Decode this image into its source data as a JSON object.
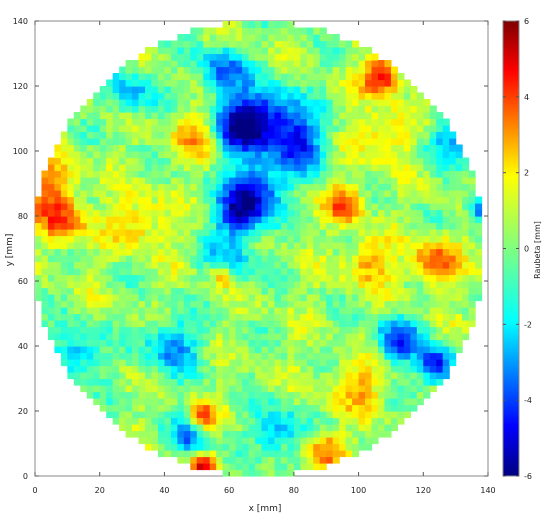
{
  "chart_data": {
    "type": "heatmap",
    "xlabel": "x [mm]",
    "ylabel": "y [mm]",
    "xlim": [
      0,
      140
    ],
    "ylim": [
      0,
      140
    ],
    "xticks": [
      "0",
      "20",
      "40",
      "60",
      "80",
      "100",
      "120",
      "140"
    ],
    "yticks": [
      "0",
      "20",
      "40",
      "60",
      "80",
      "100",
      "120",
      "140"
    ],
    "grid": false,
    "region": {
      "shape": "circle",
      "center_x": 69,
      "center_y": 70,
      "radius": 70
    },
    "colorbar": {
      "label": "Raubeta [mm]",
      "min": -6,
      "max": 6,
      "ticks": [
        "-6",
        "-4",
        "-2",
        "0",
        "2",
        "4",
        "6"
      ],
      "colormap": "jet"
    },
    "features": [
      {
        "x": 107,
        "y": 123,
        "value": 5.0,
        "spread": 4
      },
      {
        "x": 58,
        "y": 125,
        "value": -3.5,
        "spread": 5
      },
      {
        "x": 63,
        "y": 108,
        "value": -5.0,
        "spread": 6
      },
      {
        "x": 73,
        "y": 110,
        "value": -4.0,
        "spread": 7
      },
      {
        "x": 82,
        "y": 102,
        "value": -3.5,
        "spread": 6
      },
      {
        "x": 68,
        "y": 88,
        "value": -4.5,
        "spread": 6
      },
      {
        "x": 63,
        "y": 80,
        "value": -4.5,
        "spread": 5
      },
      {
        "x": 60,
        "y": 65,
        "value": -3.0,
        "spread": 5
      },
      {
        "x": 112,
        "y": 42,
        "value": -4.0,
        "spread": 5
      },
      {
        "x": 124,
        "y": 34,
        "value": -5.0,
        "spread": 4
      },
      {
        "x": 42,
        "y": 40,
        "value": -3.0,
        "spread": 6
      },
      {
        "x": 13,
        "y": 38,
        "value": -3.0,
        "spread": 5
      },
      {
        "x": 48,
        "y": 12,
        "value": -3.5,
        "spread": 4
      },
      {
        "x": 75,
        "y": 14,
        "value": -3.0,
        "spread": 5
      },
      {
        "x": 138,
        "y": 82,
        "value": -4.0,
        "spread": 3
      },
      {
        "x": 128,
        "y": 104,
        "value": -2.5,
        "spread": 5
      },
      {
        "x": 30,
        "y": 118,
        "value": -2.5,
        "spread": 5
      },
      {
        "x": 8,
        "y": 78,
        "value": 3.5,
        "spread": 5
      },
      {
        "x": 5,
        "y": 90,
        "value": 2.5,
        "spread": 6
      },
      {
        "x": 96,
        "y": 84,
        "value": 3.5,
        "spread": 4
      },
      {
        "x": 124,
        "y": 66,
        "value": 3.5,
        "spread": 5
      },
      {
        "x": 58,
        "y": 62,
        "value": 3.5,
        "spread": 3
      },
      {
        "x": 103,
        "y": 66,
        "value": 2.5,
        "spread": 5
      },
      {
        "x": 52,
        "y": 18,
        "value": 3.5,
        "spread": 3
      },
      {
        "x": 52,
        "y": 3,
        "value": 4.0,
        "spread": 3
      },
      {
        "x": 90,
        "y": 8,
        "value": 3.0,
        "spread": 4
      },
      {
        "x": 50,
        "y": 105,
        "value": 2.5,
        "spread": 5
      },
      {
        "x": 107,
        "y": 104,
        "value": 2.0,
        "spread": 6
      },
      {
        "x": 100,
        "y": 28,
        "value": 2.0,
        "spread": 6
      },
      {
        "x": 32,
        "y": 78,
        "value": 2.0,
        "spread": 6
      }
    ]
  }
}
